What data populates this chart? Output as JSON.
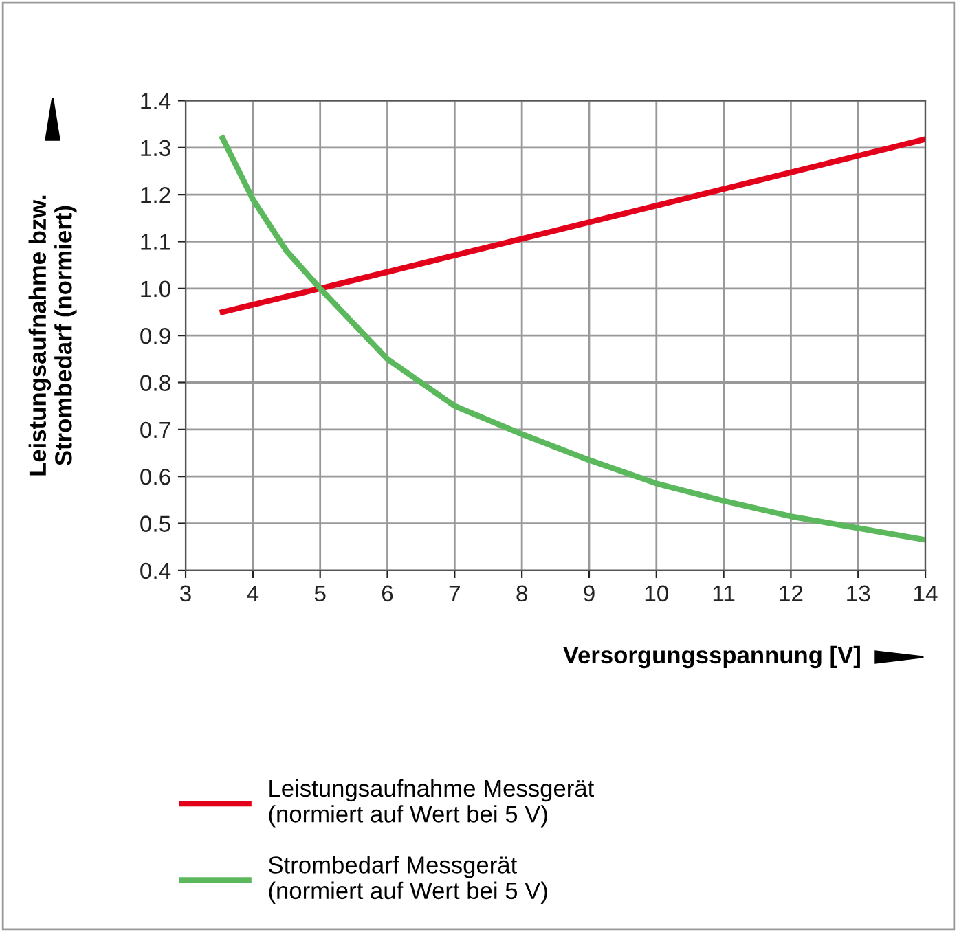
{
  "chart_data": {
    "type": "line",
    "xlabel": "Versorgungsspannung [V]",
    "ylabel": "Leistungsaufnahme bzw.\nStrombedarf (normiert)",
    "xlim": [
      3,
      14
    ],
    "ylim": [
      0.4,
      1.4
    ],
    "xticks": [
      3,
      4,
      5,
      6,
      7,
      8,
      9,
      10,
      11,
      12,
      13,
      14
    ],
    "yticks": [
      0.4,
      0.5,
      0.6,
      0.7,
      0.8,
      0.9,
      {
        "value": 1,
        "label": "1.0"
      },
      1.1,
      1.2,
      1.3,
      1.4
    ],
    "grid": true,
    "legend": "bottom",
    "marker": "none",
    "line_style": "solid",
    "series": [
      {
        "name": "Leistungsaufnahme Messgerät\n(normiert auf Wert bei 5 V)",
        "color": "#e3001b",
        "x": [
          3.55,
          5,
          14
        ],
        "values": [
          0.95,
          1.0,
          1.318
        ]
      },
      {
        "name": "Strombedarf Messgerät\n(normiert auf Wert bei 5 V)",
        "color": "#5cb85c",
        "x": [
          3.55,
          4,
          4.5,
          5,
          6,
          7,
          8,
          9,
          10,
          11,
          12,
          13,
          14
        ],
        "values": [
          1.32,
          1.19,
          1.08,
          1.0,
          0.85,
          0.75,
          0.69,
          0.635,
          0.585,
          0.548,
          0.515,
          0.49,
          0.465
        ]
      }
    ]
  }
}
